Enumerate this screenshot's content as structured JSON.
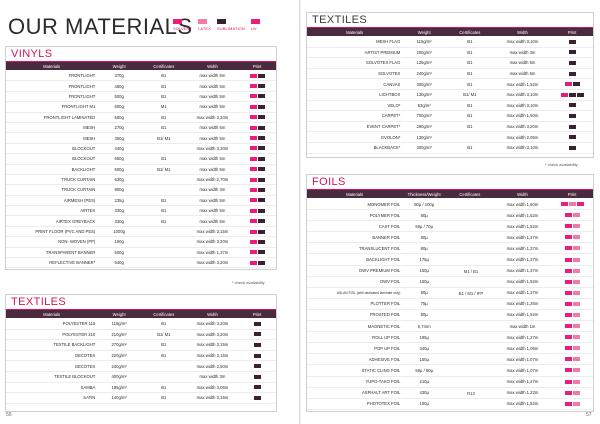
{
  "page_title": "OUR MATERIALS",
  "legend": [
    {
      "label": "SOLVENT",
      "color": "#ec1d7a",
      "icon": "pink-swatch"
    },
    {
      "label": "LATEX",
      "color": "#f07aa9",
      "icon": "light-pink-swatch"
    },
    {
      "label": "SUBLIMATION",
      "color": "#3a2235",
      "icon": "dark-swatch"
    },
    {
      "label": "UV",
      "color": "#ec1d7a",
      "icon": "pink-swatch"
    }
  ],
  "vinyls": {
    "title": "VINYLS",
    "headers": [
      "Materials",
      "Weight",
      "Certificates",
      "Width",
      "Print"
    ],
    "rows": [
      {
        "material": "FRONTLIGHT",
        "weight": "370g",
        "cert": "B1",
        "width": "max width 5m",
        "print": [
          "pink",
          "dark"
        ]
      },
      {
        "material": "FRONTLIGHT",
        "weight": "450g",
        "cert": "B1",
        "width": "max width 5m",
        "print": [
          "pink",
          "dark"
        ]
      },
      {
        "material": "FRONTLIGHT",
        "weight": "500g",
        "cert": "B1",
        "width": "max width 5m",
        "print": [
          "pink",
          "dark"
        ]
      },
      {
        "material": "FRONTLIGHT M1",
        "weight": "500g",
        "cert": "M1",
        "width": "max width 5m",
        "print": [
          "pink",
          "dark"
        ]
      },
      {
        "material": "FRONTLIGHT LAMINATED",
        "weight": "500g",
        "cert": "B1",
        "width": "max width 3,20m",
        "print": [
          "pink",
          "dark"
        ]
      },
      {
        "material": "MESH",
        "weight": "270g",
        "cert": "B1",
        "width": "max width 5m",
        "print": [
          "pink",
          "dark"
        ]
      },
      {
        "material": "MESH",
        "weight": "350g",
        "cert": "B1/ M1",
        "width": "max width 5m",
        "print": [
          "pink",
          "dark"
        ]
      },
      {
        "material": "BLOCKOUT",
        "weight": "440g",
        "cert": "",
        "width": "max width 3,20m",
        "print": [
          "pink",
          "dark"
        ]
      },
      {
        "material": "BLOCKOUT",
        "weight": "650g",
        "cert": "B1",
        "width": "max width 5m",
        "print": [
          "pink",
          "dark"
        ]
      },
      {
        "material": "BACKLIGHT",
        "weight": "500g",
        "cert": "B1/ M1",
        "width": "max width 5m",
        "print": [
          "pink",
          "dark"
        ]
      },
      {
        "material": "TRUCK CURTAIN",
        "weight": "630g",
        "cert": "",
        "width": "max width 2,70m",
        "print": [
          "pink",
          "dark"
        ]
      },
      {
        "material": "TRUCK CURTAIN",
        "weight": "900g",
        "cert": "",
        "width": "max width 3m",
        "print": [
          "pink",
          "dark"
        ]
      },
      {
        "material": "AIRMESH (PES)",
        "weight": "235g",
        "cert": "B1",
        "width": "max width 5m",
        "print": [
          "pink",
          "dark"
        ]
      },
      {
        "material": "AIRTEX",
        "weight": "330g",
        "cert": "B1",
        "width": "max width 5m",
        "print": [
          "pink",
          "dark"
        ]
      },
      {
        "material": "AIRTEX GREYBACK",
        "weight": "330g",
        "cert": "B1",
        "width": "max width 5m",
        "print": [
          "pink",
          "dark"
        ]
      },
      {
        "material": "PRINT FLOOR (PVC AND PES)",
        "weight": "1000g",
        "cert": "",
        "width": "max width 3,15m",
        "print": [
          "pink",
          "dark"
        ]
      },
      {
        "material": "NON- WOVEN (PP)",
        "weight": "150g",
        "cert": "",
        "width": "max width 3,20m",
        "print": [
          "pink",
          "dark"
        ]
      },
      {
        "material": "TRANSPARENT BANNER",
        "weight": "500g",
        "cert": "",
        "width": "max width 1,37m",
        "print": [
          "pink",
          "dark"
        ]
      },
      {
        "material": "REFLECTIVE BANNER*",
        "weight": "540g",
        "cert": "",
        "width": "max width 3,20m",
        "print": [
          "pink",
          "dark"
        ]
      }
    ],
    "note": "* check availability"
  },
  "textiles_left": {
    "title": "TEXTILES",
    "headers": [
      "Materials",
      "Weight",
      "Certificates",
      "Width",
      "Print"
    ],
    "rows": [
      {
        "material": "POLYESTER 115",
        "weight": "115g/m²",
        "cert": "B1",
        "width": "max width 3,20m",
        "print": [
          "dark"
        ]
      },
      {
        "material": "POLYESTER 210",
        "weight": "210g/m²",
        "cert": "B1/ M1",
        "width": "max width 3,20m",
        "print": [
          "dark"
        ]
      },
      {
        "material": "TEXTILE BACKLIGHT",
        "weight": "270g/m²",
        "cert": "B1",
        "width": "max width 3,15m",
        "print": [
          "dark"
        ]
      },
      {
        "material": "DECOTEX",
        "weight": "220g/m²",
        "cert": "B1",
        "width": "max width 3,15m",
        "print": [
          "dark"
        ]
      },
      {
        "material": "DECOTEX",
        "weight": "240g/m²",
        "cert": "",
        "width": "max width 2,50m",
        "print": [
          "dark"
        ]
      },
      {
        "material": "TEXTILE BLOCKOUT",
        "weight": "400g/m²",
        "cert": "",
        "width": "max width 3m",
        "print": [
          "dark"
        ]
      },
      {
        "material": "SAMBA",
        "weight": "195g/m²",
        "cert": "B1",
        "width": "max width 3,06m",
        "print": [
          "dark"
        ]
      },
      {
        "material": "SATIN",
        "weight": "140g/m²",
        "cert": "B1",
        "width": "max width 3,15m",
        "print": [
          "dark"
        ]
      }
    ]
  },
  "textiles_right": {
    "title": "TEXTILES",
    "headers": [
      "Materials",
      "Weight",
      "Certificates",
      "Width",
      "Print"
    ],
    "rows": [
      {
        "material": "MESH FLAG",
        "weight": "115g/m²",
        "cert": "B1",
        "width": "max width 3,10m",
        "print": [
          "dark"
        ]
      },
      {
        "material": "ARTIST PREMIUM",
        "weight": "200g/m²",
        "cert": "B1",
        "width": "max width 3m",
        "print": [
          "dark"
        ]
      },
      {
        "material": "SOLVOTEX FLAG",
        "weight": "125g/m²",
        "cert": "B1",
        "width": "max width 5m",
        "print": [
          "dark"
        ]
      },
      {
        "material": "SOLVOTEX",
        "weight": "240g/m²",
        "cert": "B1",
        "width": "max width 5m",
        "print": [
          "dark"
        ]
      },
      {
        "material": "CANVAS",
        "weight": "300g/m²",
        "cert": "B1",
        "width": "max width 1,52m",
        "print": [
          "pink",
          "dark"
        ]
      },
      {
        "material": "LIGHTBOX",
        "weight": "130g/m²",
        "cert": "B1/ M1",
        "width": "max width 3,10m",
        "print": [
          "pink",
          "dark",
          "dark"
        ]
      },
      {
        "material": "VELO*",
        "weight": "53g/m²",
        "cert": "B1",
        "width": "max width 3,10m",
        "print": [
          "dark"
        ]
      },
      {
        "material": "CARPET*",
        "weight": "700g/m²",
        "cert": "B1",
        "width": "max width 1,50m",
        "print": [
          "dark"
        ]
      },
      {
        "material": "EVENT CARPET*",
        "weight": "290g/m²",
        "cert": "B1",
        "width": "max width 3,20m",
        "print": [
          "dark"
        ]
      },
      {
        "material": "EVOLON*",
        "weight": "130g/m²",
        "cert": "",
        "width": "max width 2,05m",
        "print": [
          "dark"
        ]
      },
      {
        "material": "BLACKBACK*",
        "weight": "300g/m²",
        "cert": "B1",
        "width": "max width 3,10m",
        "print": [
          "dark"
        ]
      }
    ],
    "note": "* check availability"
  },
  "foils": {
    "title": "FOILS",
    "headers": [
      "Materials",
      "Thickness/Weight",
      "Certificates",
      "Width",
      "Print"
    ],
    "rows": [
      {
        "material": "MONOMER FOIL",
        "weight": "80µ / 100µ",
        "width": "max width 1,60m",
        "print": [
          "pink",
          "light",
          "pink"
        ]
      },
      {
        "material": "POLYMER FOIL",
        "weight": "80µ",
        "width": "max width 1,52m",
        "print": [
          "pink",
          "light"
        ]
      },
      {
        "material": "CAST FOIL",
        "weight": "50µ / 70µ",
        "width": "max width 1,52m",
        "print": [
          "pink",
          "light"
        ]
      },
      {
        "material": "BANNER FOIL",
        "weight": "80µ",
        "width": "max width 1,37m",
        "print": [
          "pink",
          "light"
        ]
      },
      {
        "material": "TRANSLUCENT FOIL",
        "weight": "80µ",
        "width": "max width 1,37m",
        "print": [
          "pink",
          "light"
        ]
      },
      {
        "material": "BACKLIGHT FOIL",
        "weight": "175µ",
        "width": "max width 1,37m",
        "print": [
          "pink",
          "light"
        ]
      },
      {
        "material": "OWV PREMIUM FOIL",
        "weight": "150µ",
        "width": "max width 1,37m",
        "print": [
          "pink",
          "light"
        ]
      },
      {
        "material": "OWV FOIL",
        "weight": "150µ",
        "width": "max width 1,52m",
        "print": [
          "pink",
          "light"
        ]
      },
      {
        "material": "ASLAN FOIL (with dedicated laminate only)",
        "weight": "80µ",
        "width": "max width 1,37m",
        "print": [
          "pink",
          "light"
        ]
      },
      {
        "material": "PLOTTER FOIL",
        "weight": "75µ",
        "width": "max width 1,26m",
        "print": [
          "pink",
          "light"
        ]
      },
      {
        "material": "FROSTED FOIL",
        "weight": "80µ",
        "width": "max width 1,52m",
        "print": [
          "pink",
          "light"
        ]
      },
      {
        "material": "MAGNETIC FOIL",
        "weight": "0,7mm",
        "width": "max width 1m",
        "print": [
          "pink",
          "light"
        ]
      },
      {
        "material": "ROLL UP FOIL",
        "weight": "195µ",
        "width": "max width 1,27m",
        "print": [
          "pink",
          "light"
        ]
      },
      {
        "material": "POP UP FOIL",
        "weight": "340µ",
        "width": "max width 1,06m",
        "print": [
          "pink",
          "light"
        ]
      },
      {
        "material": "ADHESIVE FOIL",
        "weight": "150µ",
        "width": "max width 1,07m",
        "print": [
          "pink",
          "light"
        ]
      },
      {
        "material": "STATIC CLING FOIL",
        "weight": "50µ / 60µ",
        "width": "max width 1,07m",
        "print": [
          "pink",
          "light"
        ]
      },
      {
        "material": "YUPO-TAKO FOIL",
        "weight": "210µ",
        "width": "max width 1,27m",
        "print": [
          "pink",
          "light"
        ]
      },
      {
        "material": "ASPHALT ART FOIL",
        "weight": "430µ",
        "width": "max width 1,22m",
        "print": [
          "pink",
          "light"
        ]
      },
      {
        "material": "PHOTOTEX FOIL",
        "weight": "100µ",
        "width": "max width 1,52m",
        "print": [
          "pink",
          "light"
        ]
      }
    ],
    "cert_groups": [
      {
        "label": "M1 / B1",
        "row": 6
      },
      {
        "label": "B1 / M1 / IFP",
        "row": 8
      },
      {
        "label": "R13",
        "row": 17
      }
    ]
  },
  "page_numbers": {
    "left": "56",
    "right": "57"
  }
}
